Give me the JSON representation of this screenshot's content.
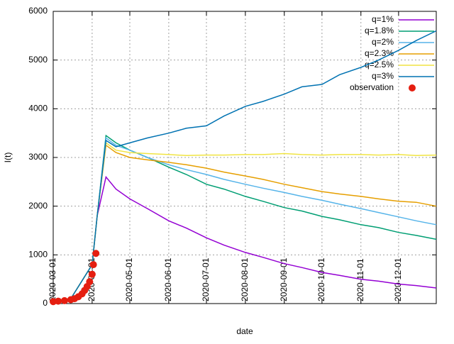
{
  "chart_data": {
    "type": "line",
    "xlabel": "date",
    "ylabel": "I(t)",
    "xlim": [
      "2020-03-01",
      "2020-12-31"
    ],
    "xticks": [
      "2020-03-01",
      "2020-04-01",
      "2020-05-01",
      "2020-06-01",
      "2020-07-01",
      "2020-08-01",
      "2020-09-01",
      "2020-10-01",
      "2020-11-01",
      "2020-12-01"
    ],
    "ylim": [
      0,
      6000
    ],
    "yticks": [
      0,
      1000,
      2000,
      3000,
      4000,
      5000,
      6000
    ],
    "grid": true,
    "legend": "top-right",
    "x": [
      "2020-03-01",
      "2020-03-15",
      "2020-04-01",
      "2020-04-05",
      "2020-04-12",
      "2020-04-20",
      "2020-05-01",
      "2020-05-15",
      "2020-06-01",
      "2020-06-15",
      "2020-07-01",
      "2020-07-15",
      "2020-08-01",
      "2020-08-15",
      "2020-09-01",
      "2020-09-15",
      "2020-10-01",
      "2020-10-15",
      "2020-11-01",
      "2020-11-15",
      "2020-12-01",
      "2020-12-15",
      "2020-12-31"
    ],
    "series": [
      {
        "name": "q=1%",
        "color": "#9400d3",
        "values": [
          40,
          100,
          800,
          1800,
          2600,
          2350,
          2150,
          1950,
          1700,
          1550,
          1350,
          1200,
          1050,
          950,
          820,
          740,
          640,
          580,
          500,
          460,
          400,
          370,
          320
        ]
      },
      {
        "name": "q=1.8%",
        "color": "#009e73",
        "values": [
          40,
          100,
          800,
          1800,
          3450,
          3300,
          3150,
          3000,
          2800,
          2650,
          2450,
          2350,
          2200,
          2100,
          1970,
          1900,
          1790,
          1720,
          1620,
          1560,
          1460,
          1400,
          1320
        ]
      },
      {
        "name": "q=2%",
        "color": "#56b4e9",
        "values": [
          40,
          100,
          800,
          1800,
          3400,
          3250,
          3150,
          3000,
          2850,
          2750,
          2650,
          2550,
          2450,
          2370,
          2280,
          2200,
          2120,
          2040,
          1950,
          1870,
          1780,
          1700,
          1620
        ]
      },
      {
        "name": "q=2.3%",
        "color": "#e69f00",
        "values": [
          40,
          100,
          800,
          1800,
          3250,
          3100,
          3000,
          2950,
          2900,
          2850,
          2780,
          2700,
          2620,
          2550,
          2450,
          2380,
          2300,
          2250,
          2200,
          2150,
          2100,
          2080,
          2000
        ]
      },
      {
        "name": "q=2.5%",
        "color": "#f0e442",
        "values": [
          40,
          100,
          800,
          1800,
          3300,
          3150,
          3100,
          3080,
          3060,
          3040,
          3050,
          3050,
          3060,
          3060,
          3080,
          3060,
          3050,
          3060,
          3060,
          3050,
          3060,
          3040,
          3050
        ]
      },
      {
        "name": "q=3%",
        "color": "#0072b2",
        "values": [
          40,
          100,
          800,
          1800,
          3350,
          3220,
          3300,
          3400,
          3500,
          3600,
          3650,
          3850,
          4050,
          4150,
          4300,
          4450,
          4500,
          4700,
          4850,
          5000,
          5200,
          5400,
          5600
        ]
      },
      {
        "name": "observation",
        "color": "#e51e10",
        "style": "points",
        "x": [
          "2020-03-01",
          "2020-03-05",
          "2020-03-10",
          "2020-03-15",
          "2020-03-18",
          "2020-03-21",
          "2020-03-24",
          "2020-03-26",
          "2020-03-28",
          "2020-03-30",
          "2020-04-01",
          "2020-04-02",
          "2020-04-04"
        ],
        "values": [
          40,
          50,
          60,
          80,
          100,
          140,
          200,
          270,
          350,
          450,
          600,
          800,
          1030
        ]
      }
    ]
  }
}
